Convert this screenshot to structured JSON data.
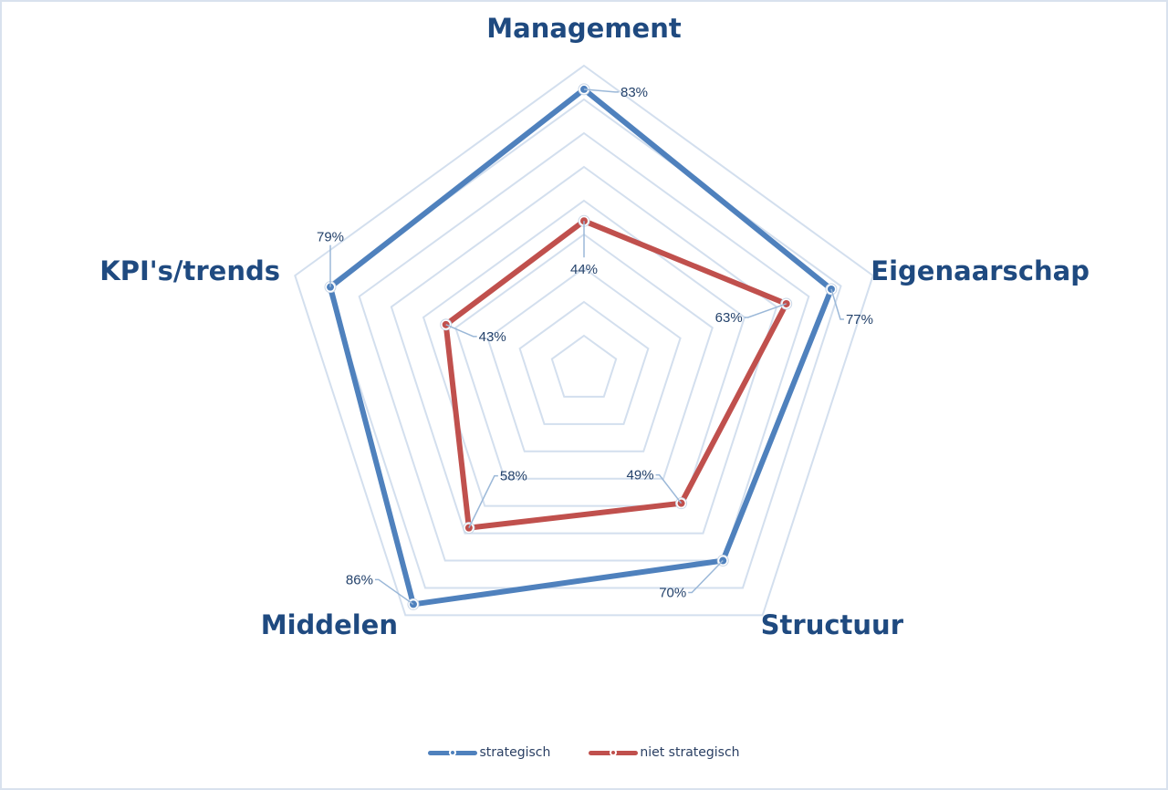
{
  "chart_data": {
    "type": "radar",
    "title": "",
    "categories": [
      "Management",
      "Eigenaarschap",
      "Structuur",
      "Middelen",
      "KPI's/trends"
    ],
    "series": [
      {
        "name": "strategisch",
        "color": "#4f81bd",
        "values": [
          83,
          77,
          70,
          86,
          79
        ],
        "labels": [
          "83%",
          "77%",
          "70%",
          "86%",
          "79%"
        ]
      },
      {
        "name": "niet strategisch",
        "color": "#c0504d",
        "values": [
          44,
          63,
          49,
          58,
          43
        ],
        "labels": [
          "44%",
          "63%",
          "49%",
          "58%",
          "43%"
        ]
      }
    ],
    "rlim": [
      0,
      90
    ],
    "gridlines": 9,
    "grid": true,
    "legend_position": "bottom",
    "value_unit": "%"
  },
  "legend": {
    "items": [
      {
        "label": "strategisch",
        "color": "#4f81bd"
      },
      {
        "label": "niet strategisch",
        "color": "#c0504d"
      }
    ]
  }
}
